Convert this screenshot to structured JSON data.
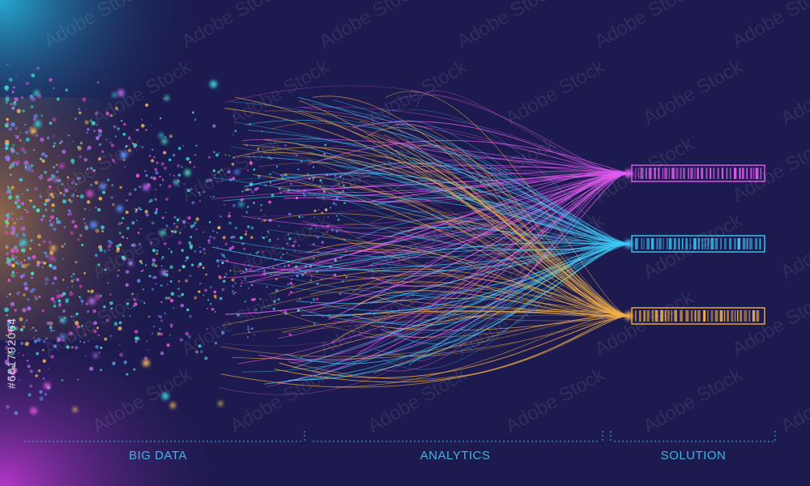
{
  "stages": [
    {
      "key": "big_data",
      "label": "BIG DATA"
    },
    {
      "key": "analytics",
      "label": "ANALYTICS"
    },
    {
      "key": "solution",
      "label": "SOLUTION"
    }
  ],
  "outputs": [
    {
      "key": "magenta",
      "color": "#e25cf0"
    },
    {
      "key": "cyan",
      "color": "#3fc8f5"
    },
    {
      "key": "amber",
      "color": "#f2b04a"
    }
  ],
  "palette": {
    "background": "#1c1a4e",
    "accent_label": "#3fb7e3",
    "particles": [
      "#3ad0d8",
      "#e24fd8",
      "#f0b55a",
      "#5a8cf0",
      "#b06ae8",
      "#4ee0c0"
    ]
  },
  "watermark": {
    "stock_text": "Adobe Stock",
    "id_text": "#601792064"
  }
}
